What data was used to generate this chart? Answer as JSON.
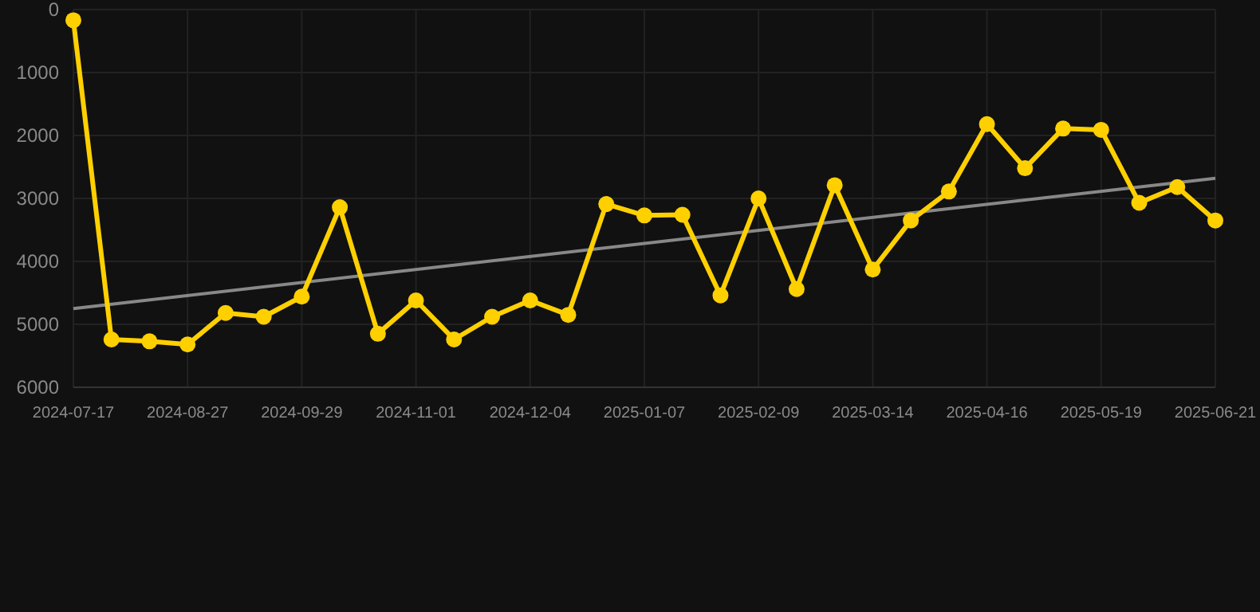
{
  "chart_data": {
    "type": "line",
    "x": [
      "2024-07-26",
      "2024-08-06",
      "2024-08-17",
      "2024-08-28",
      "2024-09-08",
      "2024-09-19",
      "2024-09-30",
      "2024-10-11",
      "2024-10-22",
      "2024-11-02",
      "2024-11-13",
      "2024-11-24",
      "2024-12-05",
      "2024-12-16",
      "2024-12-27",
      "2025-01-07",
      "2025-01-18",
      "2025-01-29",
      "2025-02-09",
      "2025-02-20",
      "2025-03-03",
      "2025-03-14",
      "2025-03-25",
      "2025-04-05",
      "2025-04-16",
      "2025-04-27",
      "2025-05-08",
      "2025-05-19",
      "2025-05-30",
      "2025-06-10",
      "2025-06-21"
    ],
    "series": [
      {
        "color": "#ffd000",
        "marker": "circle",
        "values": [
          170,
          5240,
          5270,
          5320,
          4820,
          4880,
          4560,
          3140,
          5150,
          4620,
          5240,
          4880,
          4620,
          4850,
          3090,
          3270,
          3260,
          4540,
          3000,
          4440,
          2790,
          4130,
          3350,
          2890,
          1820,
          2520,
          1890,
          1910,
          3070,
          2820,
          3350
        ]
      },
      {
        "type": "line",
        "color": "#888888",
        "marker": "none",
        "x": [
          "2024-07-26",
          "2025-06-21"
        ],
        "values": [
          4750,
          2680
        ]
      }
    ],
    "xlim": [
      "2024-07-26",
      "2025-06-21"
    ],
    "xticks": [
      {
        "value": "2024-07-26",
        "label": "2024-07-17"
      },
      {
        "value": "2024-08-28",
        "label": "2024-08-27"
      },
      {
        "value": "2024-09-30",
        "label": "2024-09-29"
      },
      {
        "value": "2024-11-02",
        "label": "2024-11-01"
      },
      {
        "value": "2024-12-05",
        "label": "2024-12-04"
      },
      {
        "value": "2025-01-07",
        "label": "2025-01-07"
      },
      {
        "value": "2025-02-09",
        "label": "2025-02-09"
      },
      {
        "value": "2025-03-14",
        "label": "2025-03-14"
      },
      {
        "value": "2025-04-16",
        "label": "2025-04-16"
      },
      {
        "value": "2025-05-19",
        "label": "2025-05-19"
      },
      {
        "value": "2025-06-21",
        "label": "2025-06-21"
      }
    ],
    "ylim": [
      6000,
      0
    ],
    "yticks": [
      0,
      1000,
      2000,
      3000,
      4000,
      5000,
      6000
    ],
    "grid": true,
    "line_style": "solid"
  }
}
